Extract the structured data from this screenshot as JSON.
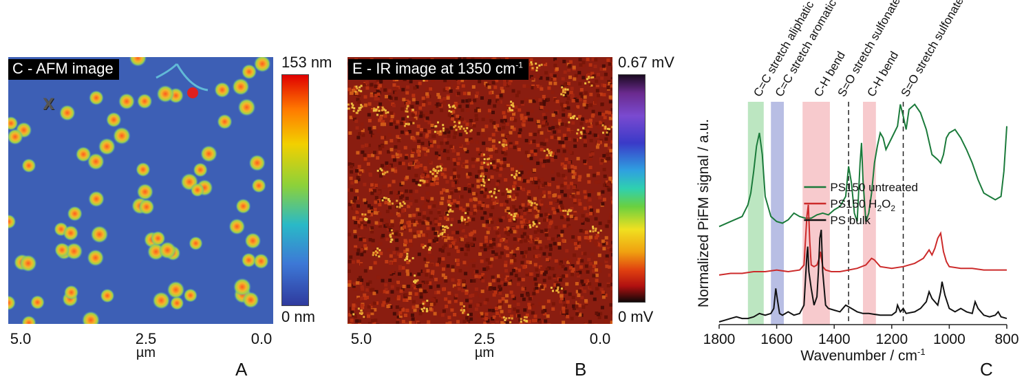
{
  "panel_a": {
    "title": "C - AFM image",
    "colorbar_max": "153 nm",
    "colorbar_min": "0 nm",
    "marker": "X",
    "x_ticks": [
      "5.0",
      "2.5",
      "0.0"
    ],
    "x_unit": "µm",
    "letter": "A"
  },
  "panel_b": {
    "title_main": "E - IR image at 1350 cm",
    "title_sup": "-1",
    "colorbar_max": "0.67 mV",
    "colorbar_min": "0 mV",
    "x_ticks": [
      "5.0",
      "2.5",
      "0.0"
    ],
    "x_unit": "µm",
    "letter": "B"
  },
  "panel_c": {
    "letter": "C"
  },
  "colors": {
    "afm_background": "#3d5fb5",
    "green_series": "#1a7a3a",
    "red_series": "#cc2a2a",
    "black_series": "#111111",
    "band_green": "#9fdca6",
    "band_blue": "#9aa3d8",
    "band_pink": "#f4b3b8"
  },
  "chart_data": {
    "type": "line",
    "xlabel": "Wavenumber / cm",
    "xlabel_sup": "-1",
    "ylabel": "Normalized PiFM signal / a.u.",
    "xlim": [
      1800,
      800
    ],
    "x_reversed": true,
    "x_ticks": [
      "1800",
      "1600",
      "1400",
      "1200",
      "1000",
      "800"
    ],
    "bands": [
      {
        "label": "C=C stretch aliphatic",
        "from": 1700,
        "to": 1645,
        "color": "green"
      },
      {
        "label": "C=C stretch aromatic",
        "from": 1620,
        "to": 1575,
        "color": "blue"
      },
      {
        "label": "C-H bend",
        "from": 1510,
        "to": 1415,
        "color": "pink"
      },
      {
        "label": "C-H bend",
        "from": 1300,
        "to": 1255,
        "color": "pink"
      }
    ],
    "dashed_lines": [
      {
        "x": 1350,
        "label": "S=O stretch sulfonate"
      },
      {
        "x": 1160,
        "label": "S=O stretch sulfonate"
      }
    ],
    "legend": [
      {
        "name": "PS150 untreated",
        "color": "green"
      },
      {
        "name": "PS150 H2O2",
        "color": "red"
      },
      {
        "name": "PS bulk",
        "color": "black"
      }
    ],
    "series": [
      {
        "name": "PS150 untreated",
        "offset": 0.55,
        "x": [
          1800,
          1760,
          1720,
          1700,
          1690,
          1680,
          1670,
          1660,
          1650,
          1640,
          1620,
          1600,
          1580,
          1560,
          1540,
          1520,
          1500,
          1480,
          1460,
          1440,
          1420,
          1400,
          1380,
          1360,
          1350,
          1340,
          1330,
          1320,
          1310,
          1305,
          1300,
          1290,
          1280,
          1270,
          1260,
          1250,
          1240,
          1230,
          1220,
          1200,
          1180,
          1170,
          1160,
          1150,
          1140,
          1120,
          1100,
          1080,
          1060,
          1040,
          1030,
          1020,
          1010,
          1000,
          980,
          960,
          940,
          920,
          900,
          880,
          860,
          840,
          820,
          810,
          800
        ],
        "y": [
          0.02,
          0.05,
          0.08,
          0.15,
          0.22,
          0.35,
          0.5,
          0.58,
          0.45,
          0.2,
          0.08,
          0.05,
          0.04,
          0.06,
          0.1,
          0.08,
          0.07,
          0.07,
          0.09,
          0.1,
          0.09,
          0.12,
          0.14,
          0.2,
          0.38,
          0.28,
          0.1,
          0.05,
          0.4,
          0.52,
          0.3,
          0.05,
          0.1,
          0.22,
          0.4,
          0.5,
          0.58,
          0.55,
          0.48,
          0.55,
          0.62,
          0.75,
          0.68,
          0.6,
          0.72,
          0.75,
          0.7,
          0.6,
          0.45,
          0.42,
          0.4,
          0.45,
          0.55,
          0.58,
          0.6,
          0.55,
          0.48,
          0.4,
          0.3,
          0.22,
          0.2,
          0.18,
          0.2,
          0.35,
          0.62
        ]
      },
      {
        "name": "PS150 H2O2",
        "offset": 0.28,
        "x": [
          1800,
          1760,
          1720,
          1680,
          1640,
          1600,
          1560,
          1520,
          1505,
          1495,
          1490,
          1485,
          1480,
          1470,
          1460,
          1452,
          1448,
          1440,
          1430,
          1410,
          1380,
          1350,
          1320,
          1290,
          1270,
          1260,
          1240,
          1200,
          1160,
          1120,
          1090,
          1070,
          1060,
          1050,
          1040,
          1030,
          1020,
          1010,
          1000,
          960,
          920,
          880,
          840,
          800
        ],
        "y": [
          0.0,
          0.01,
          0.01,
          0.02,
          0.02,
          0.03,
          0.02,
          0.03,
          0.06,
          0.35,
          0.42,
          0.2,
          0.06,
          0.05,
          0.06,
          0.1,
          0.14,
          0.05,
          0.03,
          0.02,
          0.02,
          0.03,
          0.04,
          0.06,
          0.1,
          0.09,
          0.05,
          0.04,
          0.05,
          0.07,
          0.1,
          0.15,
          0.12,
          0.16,
          0.22,
          0.25,
          0.14,
          0.08,
          0.05,
          0.04,
          0.04,
          0.03,
          0.03,
          0.03
        ]
      },
      {
        "name": "PS bulk",
        "offset": 0.0,
        "x": [
          1800,
          1780,
          1760,
          1740,
          1720,
          1700,
          1680,
          1660,
          1640,
          1620,
          1610,
          1603,
          1598,
          1590,
          1580,
          1560,
          1540,
          1520,
          1505,
          1495,
          1492,
          1488,
          1480,
          1470,
          1460,
          1455,
          1450,
          1445,
          1440,
          1430,
          1420,
          1400,
          1380,
          1360,
          1340,
          1320,
          1300,
          1280,
          1240,
          1200,
          1185,
          1180,
          1170,
          1160,
          1150,
          1120,
          1100,
          1080,
          1070,
          1060,
          1040,
          1030,
          1025,
          1015,
          1000,
          980,
          960,
          940,
          920,
          910,
          900,
          880,
          860,
          840,
          830,
          820,
          800
        ],
        "y": [
          0.0,
          0.01,
          0.02,
          0.03,
          0.02,
          0.02,
          0.03,
          0.05,
          0.04,
          0.05,
          0.08,
          0.2,
          0.14,
          0.05,
          0.04,
          0.06,
          0.04,
          0.05,
          0.1,
          0.4,
          0.45,
          0.3,
          0.2,
          0.1,
          0.15,
          0.3,
          0.5,
          0.55,
          0.3,
          0.1,
          0.08,
          0.07,
          0.06,
          0.1,
          0.08,
          0.06,
          0.05,
          0.05,
          0.04,
          0.04,
          0.06,
          0.1,
          0.06,
          0.08,
          0.05,
          0.06,
          0.08,
          0.12,
          0.18,
          0.14,
          0.1,
          0.18,
          0.24,
          0.16,
          0.08,
          0.06,
          0.08,
          0.06,
          0.05,
          0.12,
          0.08,
          0.04,
          0.03,
          0.04,
          0.06,
          0.03,
          0.02
        ]
      }
    ]
  }
}
